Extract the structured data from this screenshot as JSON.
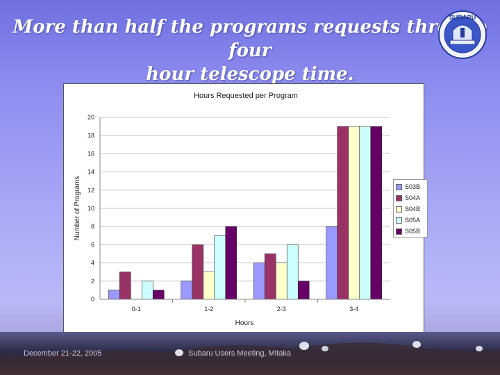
{
  "slide": {
    "title_line1": "More than half the programs requests three to four",
    "title_line2": "hour telescope time.",
    "logo_text": "SUBARU"
  },
  "footer": {
    "date": "December 21-22, 2005",
    "event": "Subaru Users Meeting, Mitaka"
  },
  "chart_data": {
    "type": "bar",
    "title": "Hours Requested per Program",
    "xlabel": "Hours",
    "ylabel": "Number of Programs",
    "ylim": [
      0,
      20
    ],
    "yticks": [
      0,
      2,
      4,
      6,
      8,
      10,
      12,
      14,
      16,
      18,
      20
    ],
    "categories": [
      "0-1",
      "1-2",
      "2-3",
      "3-4"
    ],
    "grid": true,
    "legend_position": "right",
    "series": [
      {
        "name": "S03B",
        "color": "#9999ff",
        "values": [
          1,
          2,
          4,
          8
        ]
      },
      {
        "name": "S04A",
        "color": "#993366",
        "values": [
          3,
          6,
          5,
          19
        ]
      },
      {
        "name": "S04B",
        "color": "#ffffcc",
        "values": [
          0,
          3,
          4,
          19
        ]
      },
      {
        "name": "S05A",
        "color": "#ccffff",
        "values": [
          2,
          7,
          6,
          19
        ]
      },
      {
        "name": "S05B",
        "color": "#660066",
        "values": [
          1,
          8,
          2,
          19
        ]
      }
    ]
  }
}
